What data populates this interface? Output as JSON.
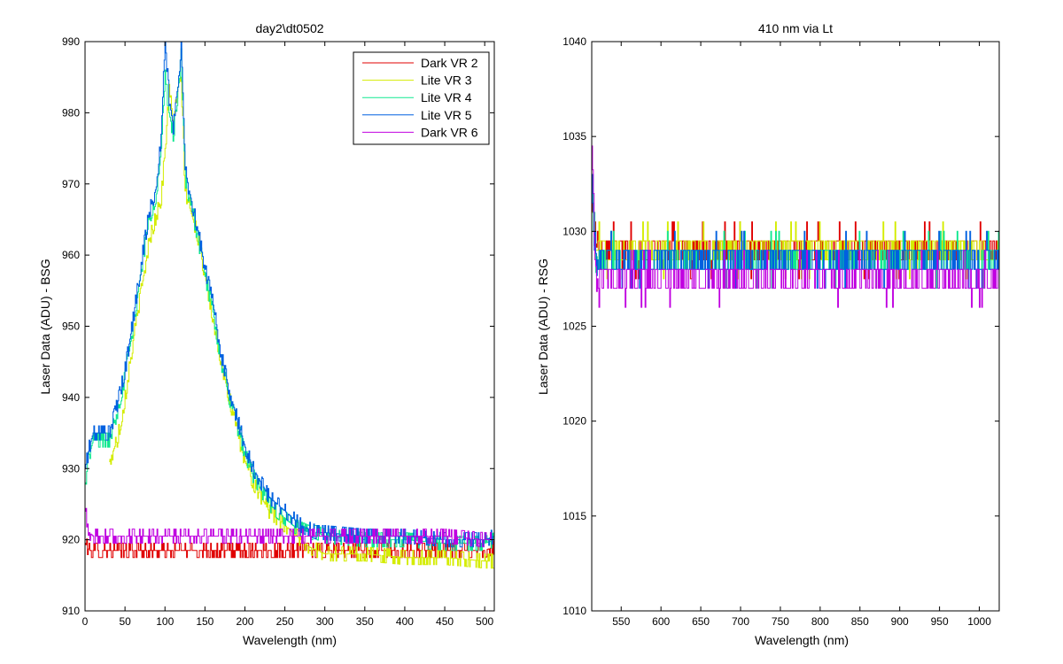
{
  "chart_data": [
    {
      "type": "line",
      "title": "day2\\dt0502",
      "xlabel": "Wavelength (nm)",
      "ylabel": "Laser Data (ADU) - BSG",
      "xlim": [
        0,
        512
      ],
      "ylim": [
        910,
        990
      ],
      "xticks": [
        0,
        50,
        100,
        150,
        200,
        250,
        300,
        350,
        400,
        450,
        500
      ],
      "yticks": [
        910,
        920,
        930,
        940,
        950,
        960,
        970,
        980,
        990
      ],
      "grid": false,
      "legend": {
        "placement": "top-right",
        "entries": [
          "Dark VR 2",
          "Lite VR 3",
          "Lite VR 4",
          "Lite VR 5",
          "Dark VR 6"
        ]
      },
      "series": [
        {
          "name": "Dark VR 2",
          "color": "#e00000",
          "x": [
            0,
            5,
            10,
            30,
            50,
            100,
            150,
            200,
            250,
            300,
            350,
            400,
            450,
            500,
            512
          ],
          "y": [
            919.5,
            918.5,
            918.5,
            918.5,
            918.5,
            918.5,
            918.5,
            918.5,
            918.5,
            918.5,
            918.5,
            918.5,
            918.5,
            918.5,
            919
          ]
        },
        {
          "name": "Lite VR 3",
          "color": "#d4ec00",
          "x": [
            30,
            40,
            50,
            60,
            70,
            80,
            90,
            95,
            100,
            105,
            110,
            115,
            120,
            125,
            130,
            140,
            150,
            160,
            170,
            180,
            190,
            200,
            210,
            220,
            230,
            240,
            250,
            260,
            270,
            280,
            290,
            300,
            350,
            400,
            450,
            500,
            512
          ],
          "y": [
            931,
            934,
            940,
            948,
            955,
            962,
            966,
            968,
            975,
            983,
            979,
            982,
            985,
            969,
            967,
            963,
            957,
            951,
            945,
            940,
            935,
            931,
            928,
            926,
            924,
            923,
            922,
            921,
            920,
            919,
            918.5,
            918,
            918,
            917.5,
            917.5,
            917,
            917
          ]
        },
        {
          "name": "Lite VR 4",
          "color": "#10e890",
          "x": [
            0,
            5,
            10,
            30,
            40,
            50,
            60,
            70,
            80,
            90,
            95,
            100,
            105,
            110,
            115,
            120,
            125,
            130,
            140,
            150,
            160,
            170,
            180,
            190,
            200,
            210,
            220,
            230,
            240,
            250,
            260,
            270,
            280,
            290,
            300,
            350,
            400,
            450,
            500,
            512
          ],
          "y": [
            928,
            932,
            934,
            934,
            938,
            943,
            950,
            958,
            965,
            969,
            975,
            985,
            980,
            977,
            981,
            989,
            971,
            968,
            963,
            957,
            952,
            945,
            940,
            936,
            932,
            929,
            927,
            925,
            924,
            923,
            922,
            921.5,
            921,
            921,
            920.5,
            920,
            920,
            919.5,
            919.5,
            920
          ]
        },
        {
          "name": "Lite VR 5",
          "color": "#0060e0",
          "x": [
            0,
            5,
            10,
            30,
            40,
            50,
            60,
            70,
            80,
            90,
            95,
            100,
            105,
            110,
            115,
            120,
            125,
            130,
            140,
            150,
            160,
            170,
            180,
            190,
            200,
            210,
            220,
            230,
            240,
            250,
            260,
            270,
            280,
            290,
            300,
            350,
            400,
            450,
            500,
            512
          ],
          "y": [
            930,
            933,
            935,
            935,
            939,
            944,
            951,
            959,
            966,
            970,
            977,
            990,
            982,
            978,
            982,
            990,
            972,
            969,
            964,
            958,
            953,
            946,
            941,
            937,
            933,
            930,
            928,
            926,
            925,
            924,
            923,
            922,
            921.5,
            921,
            921,
            920.5,
            920.5,
            920,
            920,
            920.5
          ]
        },
        {
          "name": "Dark VR 6",
          "color": "#c000e0",
          "x": [
            0,
            5,
            10,
            50,
            100,
            150,
            200,
            250,
            300,
            350,
            400,
            450,
            500,
            512
          ],
          "y": [
            924,
            921,
            920.5,
            920.5,
            920.5,
            920.5,
            920.5,
            920.5,
            920.5,
            920.5,
            920.5,
            920.5,
            920,
            920
          ]
        }
      ]
    },
    {
      "type": "line",
      "title": "410 nm via Lt",
      "xlabel": "Wavelength (nm)",
      "ylabel": "Laser Data (ADU) - RSG",
      "xlim": [
        513,
        1025
      ],
      "ylim": [
        1010,
        1040
      ],
      "xticks": [
        550,
        600,
        650,
        700,
        750,
        800,
        850,
        900,
        950,
        1000
      ],
      "yticks": [
        1010,
        1015,
        1020,
        1025,
        1030,
        1035,
        1040
      ],
      "grid": false,
      "legend": null,
      "series": [
        {
          "color": "#e00000",
          "x": [
            513,
            515,
            517,
            520,
            1025
          ],
          "y": [
            1033,
            1031,
            1029.5,
            1029,
            1029
          ]
        },
        {
          "color": "#d4ec00",
          "x": [
            513,
            515,
            517,
            520,
            1025
          ],
          "y": [
            1032,
            1030,
            1029,
            1029,
            1029
          ]
        },
        {
          "color": "#10e890",
          "x": [
            513,
            515,
            517,
            520,
            1025
          ],
          "y": [
            1033,
            1031,
            1029,
            1028.5,
            1028.5
          ]
        },
        {
          "color": "#0060e0",
          "x": [
            513,
            515,
            517,
            520,
            1025
          ],
          "y": [
            1034,
            1031,
            1029,
            1028.5,
            1028.5
          ]
        },
        {
          "color": "#c000e0",
          "x": [
            513,
            515,
            517,
            520,
            1025
          ],
          "y": [
            1035.5,
            1031,
            1028.5,
            1027.5,
            1027.5
          ]
        }
      ]
    }
  ]
}
